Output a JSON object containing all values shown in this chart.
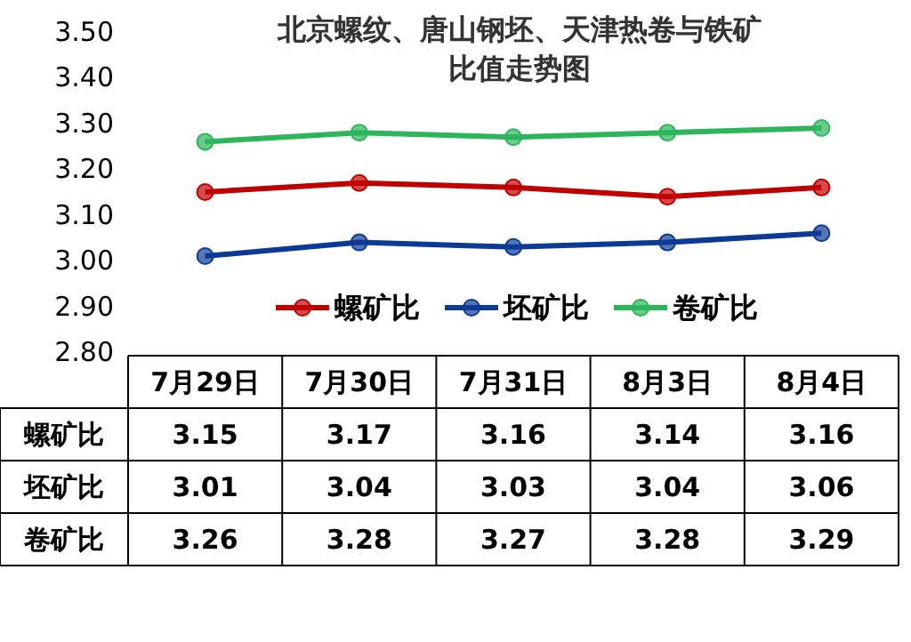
{
  "chart_data": {
    "type": "line",
    "title": "北京螺纹、唐山钢坯、天津热卷与铁矿比值走势图",
    "categories": [
      "7月29日",
      "7月30日",
      "7月31日",
      "8月3日",
      "8月4日"
    ],
    "series": [
      {
        "name": "螺矿比",
        "color": "#c00000",
        "values": [
          3.15,
          3.17,
          3.16,
          3.14,
          3.16
        ]
      },
      {
        "name": "坯矿比",
        "color": "#0d3a94",
        "values": [
          3.01,
          3.04,
          3.03,
          3.04,
          3.06
        ]
      },
      {
        "name": "卷矿比",
        "color": "#2cb55a",
        "values": [
          3.26,
          3.28,
          3.27,
          3.28,
          3.29
        ]
      }
    ],
    "ylim": [
      2.8,
      3.5
    ],
    "yticks": [
      {
        "value": 2.8,
        "label": "2.80"
      },
      {
        "value": 2.9,
        "label": "2.90"
      },
      {
        "value": 3.0,
        "label": "3.00"
      },
      {
        "value": 3.1,
        "label": "3.10"
      },
      {
        "value": 3.2,
        "label": "3.20"
      },
      {
        "value": 3.3,
        "label": "3.30"
      },
      {
        "value": 3.4,
        "label": "3.40"
      },
      {
        "value": 3.5,
        "label": "3.50"
      }
    ],
    "marker": "circle",
    "legend": "bottom",
    "data_labels": true,
    "grid": false
  }
}
